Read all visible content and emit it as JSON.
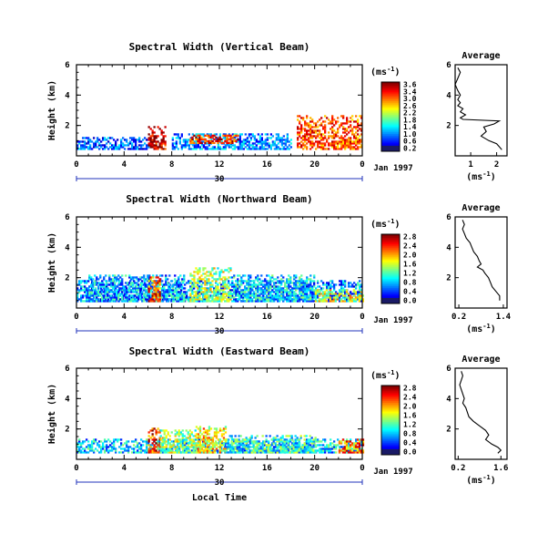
{
  "figure": {
    "xlabel": "Local Time",
    "date_label": "Jan 1997",
    "day_label": "30",
    "unit_label": "(ms",
    "unit_sup": "-1",
    "unit_close": ")",
    "average_title": "Average",
    "avg_xlabel": "(ms",
    "avg_xlabel_close": ")"
  },
  "panels": [
    {
      "title": "Spectral Width (Vertical Beam)",
      "ylabel": "Height (km)",
      "colorbar_ticks": [
        "3.6",
        "3.4",
        "3.0",
        "2.6",
        "2.2",
        "1.8",
        "1.4",
        "1.0",
        "0.6",
        "0.2"
      ],
      "avg_xticks": [
        "1",
        "2"
      ]
    },
    {
      "title": "Spectral Width (Northward Beam)",
      "ylabel": "Height (km)",
      "colorbar_ticks": [
        "2.8",
        "2.4",
        "2.0",
        "1.6",
        "1.2",
        "0.8",
        "0.4",
        "0.0"
      ],
      "avg_xticks": [
        "0.2",
        "1.4"
      ]
    },
    {
      "title": "Spectral Width (Eastward Beam)",
      "ylabel": "Height (km)",
      "colorbar_ticks": [
        "2.8",
        "2.4",
        "2.0",
        "1.6",
        "1.2",
        "0.8",
        "0.4",
        "0.0"
      ],
      "avg_xticks": [
        "0.2",
        "1.6"
      ]
    }
  ],
  "chart_data": [
    {
      "type": "heatmap",
      "title": "Spectral Width (Vertical Beam)",
      "ylabel": "Height (km)",
      "xlabel": "",
      "xlim": [
        0,
        24
      ],
      "ylim": [
        0,
        6
      ],
      "xticks": [
        "0",
        "4",
        "8",
        "12",
        "16",
        "20",
        "0"
      ],
      "yticks": [
        "2",
        "4",
        "6"
      ],
      "colorbar_range": [
        0,
        3.8
      ],
      "regions": [
        {
          "x0": 0,
          "x1": 6,
          "h0": 0.4,
          "h1": 1.2,
          "level": 0.8
        },
        {
          "x0": 6,
          "x1": 7.5,
          "h0": 0.4,
          "h1": 1.9,
          "level": 3.5
        },
        {
          "x0": 8,
          "x1": 18,
          "h0": 0.4,
          "h1": 1.4,
          "level": 1.0
        },
        {
          "x0": 9.5,
          "x1": 13.5,
          "h0": 0.8,
          "h1": 1.4,
          "level": 3.2
        },
        {
          "x0": 18.5,
          "x1": 24,
          "h0": 0.4,
          "h1": 2.6,
          "level": 3.0
        }
      ],
      "average": {
        "title": "Average",
        "xticks": [
          1,
          2
        ],
        "xlim": [
          0.4,
          2.4
        ],
        "ylim": [
          0,
          6
        ],
        "x": [
          0.5,
          0.6,
          0.5,
          0.4,
          0.5,
          0.6,
          0.5,
          0.6,
          0.5,
          0.7,
          0.6,
          0.8,
          0.6,
          0.7,
          2.1,
          1.9,
          1.5,
          1.6,
          1.4,
          1.7,
          2.0,
          2.1,
          2.2
        ],
        "y": [
          5.8,
          5.5,
          5.1,
          4.7,
          4.3,
          4.0,
          3.7,
          3.5,
          3.3,
          3.1,
          2.9,
          2.7,
          2.5,
          2.4,
          2.3,
          2.1,
          1.9,
          1.6,
          1.3,
          1.0,
          0.8,
          0.6,
          0.4
        ]
      }
    },
    {
      "type": "heatmap",
      "title": "Spectral Width (Northward Beam)",
      "ylabel": "Height (km)",
      "xlabel": "",
      "xlim": [
        0,
        24
      ],
      "ylim": [
        0,
        6
      ],
      "xticks": [
        "0",
        "4",
        "8",
        "12",
        "16",
        "20",
        "0"
      ],
      "yticks": [
        "2",
        "4",
        "6"
      ],
      "colorbar_range": [
        0,
        3.0
      ],
      "regions": [
        {
          "x0": 0,
          "x1": 24,
          "h0": 0.4,
          "h1": 1.8,
          "level": 0.8
        },
        {
          "x0": 1,
          "x1": 9,
          "h0": 0.4,
          "h1": 2.2,
          "level": 0.9
        },
        {
          "x0": 6,
          "x1": 7,
          "h0": 0.4,
          "h1": 2.0,
          "level": 2.4
        },
        {
          "x0": 9.5,
          "x1": 13,
          "h0": 0.4,
          "h1": 2.6,
          "level": 1.6
        },
        {
          "x0": 13,
          "x1": 20,
          "h0": 0.4,
          "h1": 2.2,
          "level": 1.0
        },
        {
          "x0": 20,
          "x1": 24,
          "h0": 0.4,
          "h1": 1.2,
          "level": 1.8
        }
      ],
      "average": {
        "title": "Average",
        "xticks": [
          0.2,
          1.4
        ],
        "xlim": [
          0.1,
          1.5
        ],
        "ylim": [
          0,
          6
        ],
        "x": [
          0.3,
          0.35,
          0.3,
          0.35,
          0.4,
          0.5,
          0.55,
          0.6,
          0.7,
          0.75,
          0.8,
          0.7,
          0.85,
          0.9,
          1.0,
          1.05,
          1.1,
          1.2,
          1.3,
          1.3
        ],
        "y": [
          5.8,
          5.5,
          5.2,
          4.9,
          4.6,
          4.3,
          4.0,
          3.7,
          3.4,
          3.1,
          2.9,
          2.7,
          2.5,
          2.3,
          2.0,
          1.7,
          1.4,
          1.1,
          0.8,
          0.5
        ]
      }
    },
    {
      "type": "heatmap",
      "title": "Spectral Width (Eastward Beam)",
      "ylabel": "Height (km)",
      "xlabel": "Local Time",
      "xlim": [
        0,
        24
      ],
      "ylim": [
        0,
        6
      ],
      "xticks": [
        "0",
        "4",
        "8",
        "12",
        "16",
        "20",
        "0"
      ],
      "yticks": [
        "2",
        "4",
        "6"
      ],
      "colorbar_range": [
        0,
        3.0
      ],
      "regions": [
        {
          "x0": 0,
          "x1": 24,
          "h0": 0.4,
          "h1": 1.3,
          "level": 1.0
        },
        {
          "x0": 6,
          "x1": 7,
          "h0": 0.4,
          "h1": 2.0,
          "level": 2.6
        },
        {
          "x0": 7,
          "x1": 10,
          "h0": 0.4,
          "h1": 1.9,
          "level": 1.6
        },
        {
          "x0": 10,
          "x1": 12.5,
          "h0": 0.4,
          "h1": 2.1,
          "level": 1.9
        },
        {
          "x0": 12.5,
          "x1": 20,
          "h0": 0.4,
          "h1": 1.6,
          "level": 1.2
        },
        {
          "x0": 22,
          "x1": 24,
          "h0": 0.4,
          "h1": 1.3,
          "level": 2.3
        }
      ],
      "average": {
        "title": "Average",
        "xticks": [
          0.2,
          1.6
        ],
        "xlim": [
          0.1,
          1.8
        ],
        "ylim": [
          0,
          6
        ],
        "x": [
          0.3,
          0.35,
          0.3,
          0.25,
          0.3,
          0.35,
          0.4,
          0.35,
          0.45,
          0.5,
          0.55,
          0.7,
          0.9,
          1.1,
          1.2,
          1.1,
          1.3,
          1.5,
          1.6,
          1.5
        ],
        "y": [
          5.8,
          5.5,
          5.2,
          4.9,
          4.6,
          4.3,
          4.0,
          3.7,
          3.4,
          3.1,
          2.8,
          2.5,
          2.2,
          1.9,
          1.6,
          1.3,
          1.0,
          0.8,
          0.6,
          0.4
        ]
      }
    }
  ]
}
